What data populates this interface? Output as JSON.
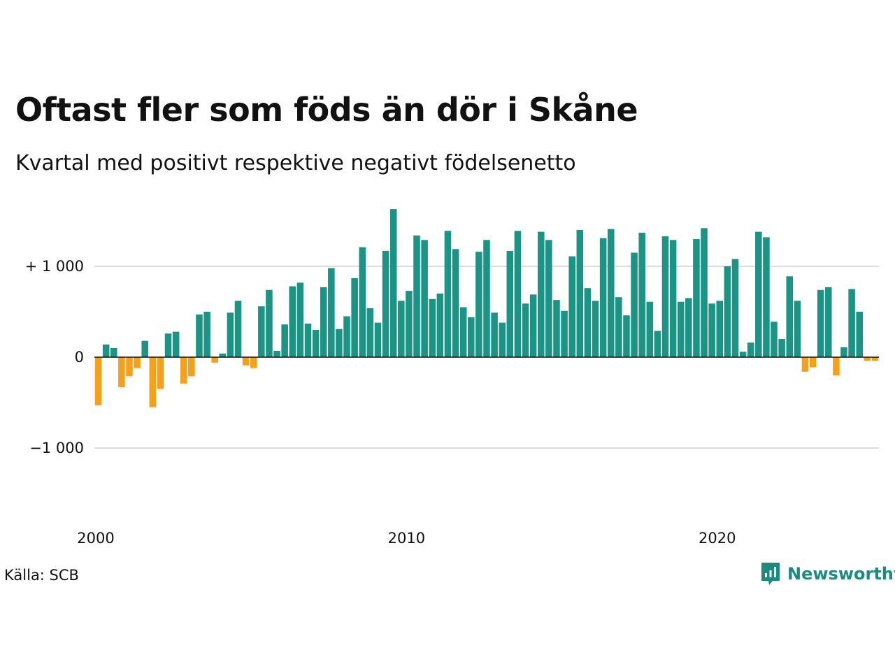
{
  "title": "Oftast fler som föds än dör i Skåne",
  "subtitle": "Kvartal med positivt respektive negativt födelsenetto",
  "source": "Källa: SCB",
  "brand": {
    "name": "Newsworthy",
    "icon": "chart-bubble-icon"
  },
  "colors": {
    "positive": "#1b9485",
    "negative": "#f5a01a",
    "grid": "#dddddd",
    "brand": "#1c8a7d"
  },
  "chart_data": {
    "type": "bar",
    "title": "Oftast fler som föds än dör i Skåne",
    "subtitle": "Kvartal med positivt respektive negativt födelsenetto",
    "xlabel": "",
    "ylabel": "",
    "ylim": [
      -1600,
      1650
    ],
    "xlim": [
      2000,
      2025.25
    ],
    "start_year": 2000,
    "quarters_per_year": 4,
    "grid": true,
    "y_ticks": [
      {
        "value": 1000,
        "label": "+ 1 000"
      },
      {
        "value": 0,
        "label": "0"
      },
      {
        "value": -1000,
        "label": "−1 000"
      }
    ],
    "x_ticks": [
      {
        "value": 2000,
        "label": "2000"
      },
      {
        "value": 2010,
        "label": "2010"
      },
      {
        "value": 2020,
        "label": "2020"
      }
    ],
    "categories": [
      "2000 K1",
      "2000 K2",
      "2000 K3",
      "2000 K4",
      "2001 K1",
      "2001 K2",
      "2001 K3",
      "2001 K4",
      "2002 K1",
      "2002 K2",
      "2002 K3",
      "2002 K4",
      "2003 K1",
      "2003 K2",
      "2003 K3",
      "2003 K4",
      "2004 K1",
      "2004 K2",
      "2004 K3",
      "2004 K4",
      "2005 K1",
      "2005 K2",
      "2005 K3",
      "2005 K4",
      "2006 K1",
      "2006 K2",
      "2006 K3",
      "2006 K4",
      "2007 K1",
      "2007 K2",
      "2007 K3",
      "2007 K4",
      "2008 K1",
      "2008 K2",
      "2008 K3",
      "2008 K4",
      "2009 K1",
      "2009 K2",
      "2009 K3",
      "2009 K4",
      "2010 K1",
      "2010 K2",
      "2010 K3",
      "2010 K4",
      "2011 K1",
      "2011 K2",
      "2011 K3",
      "2011 K4",
      "2012 K1",
      "2012 K2",
      "2012 K3",
      "2012 K4",
      "2013 K1",
      "2013 K2",
      "2013 K3",
      "2013 K4",
      "2014 K1",
      "2014 K2",
      "2014 K3",
      "2014 K4",
      "2015 K1",
      "2015 K2",
      "2015 K3",
      "2015 K4",
      "2016 K1",
      "2016 K2",
      "2016 K3",
      "2016 K4",
      "2017 K1",
      "2017 K2",
      "2017 K3",
      "2017 K4",
      "2018 K1",
      "2018 K2",
      "2018 K3",
      "2018 K4",
      "2019 K1",
      "2019 K2",
      "2019 K3",
      "2019 K4",
      "2020 K1",
      "2020 K2",
      "2020 K3",
      "2020 K4",
      "2021 K1",
      "2021 K2",
      "2021 K3",
      "2021 K4",
      "2022 K1",
      "2022 K2",
      "2022 K3",
      "2022 K4",
      "2023 K1",
      "2023 K2",
      "2023 K3",
      "2023 K4",
      "2024 K1",
      "2024 K2",
      "2024 K3",
      "2024 K4",
      "2025 K1"
    ],
    "values": [
      -530,
      140,
      100,
      -330,
      -210,
      -120,
      180,
      -550,
      -350,
      260,
      280,
      -290,
      -210,
      470,
      500,
      -60,
      40,
      490,
      620,
      -90,
      -120,
      560,
      740,
      70,
      360,
      780,
      820,
      370,
      300,
      770,
      980,
      310,
      450,
      870,
      1210,
      540,
      380,
      1170,
      1630,
      620,
      730,
      1340,
      1290,
      640,
      700,
      1390,
      1190,
      550,
      440,
      1160,
      1290,
      490,
      380,
      1170,
      1390,
      590,
      690,
      1380,
      1290,
      630,
      510,
      1110,
      1400,
      760,
      620,
      1310,
      1410,
      660,
      460,
      1150,
      1370,
      610,
      290,
      1330,
      1290,
      610,
      650,
      1300,
      1420,
      590,
      620,
      1000,
      1080,
      60,
      160,
      1380,
      1320,
      390,
      200,
      890,
      620,
      -160,
      -110,
      740,
      770,
      -200,
      110,
      750,
      500,
      -40,
      -40
    ]
  }
}
